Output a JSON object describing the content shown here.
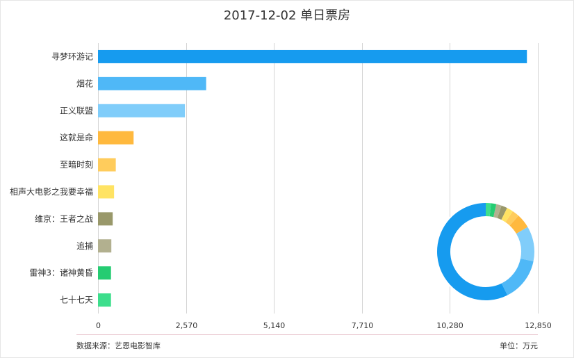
{
  "title": "2017-12-02 单日票房",
  "footer": {
    "source": "数据来源：艺恩电影智库",
    "unit": "单位：万元"
  },
  "chart_data": {
    "type": "bar",
    "orientation": "horizontal",
    "title": "2017-12-02 单日票房",
    "categories": [
      "寻梦环游记",
      "烟花",
      "正义联盟",
      "这就是命",
      "至暗时刻",
      "相声大电影之我要幸福",
      "维京：王者之战",
      "追捕",
      "雷神3：诸神黄昏",
      "七十七天"
    ],
    "values": [
      12530,
      3160,
      2540,
      1040,
      520,
      470,
      430,
      390,
      380,
      380
    ],
    "colors": [
      "#169bef",
      "#4fb8f7",
      "#80cdfa",
      "#ffb93e",
      "#ffcc5c",
      "#ffe363",
      "#99986a",
      "#b2b08f",
      "#25cc72",
      "#3dde8c"
    ],
    "xlim": [
      0,
      12850
    ],
    "xticks": [
      "0",
      "2,570",
      "5,140",
      "7,710",
      "10,280",
      "12,850"
    ],
    "xtick_values": [
      0,
      2570,
      5140,
      7710,
      10280,
      12850
    ],
    "grid": true,
    "legend": "none",
    "inset": {
      "type": "donut",
      "values_from": "values"
    }
  }
}
